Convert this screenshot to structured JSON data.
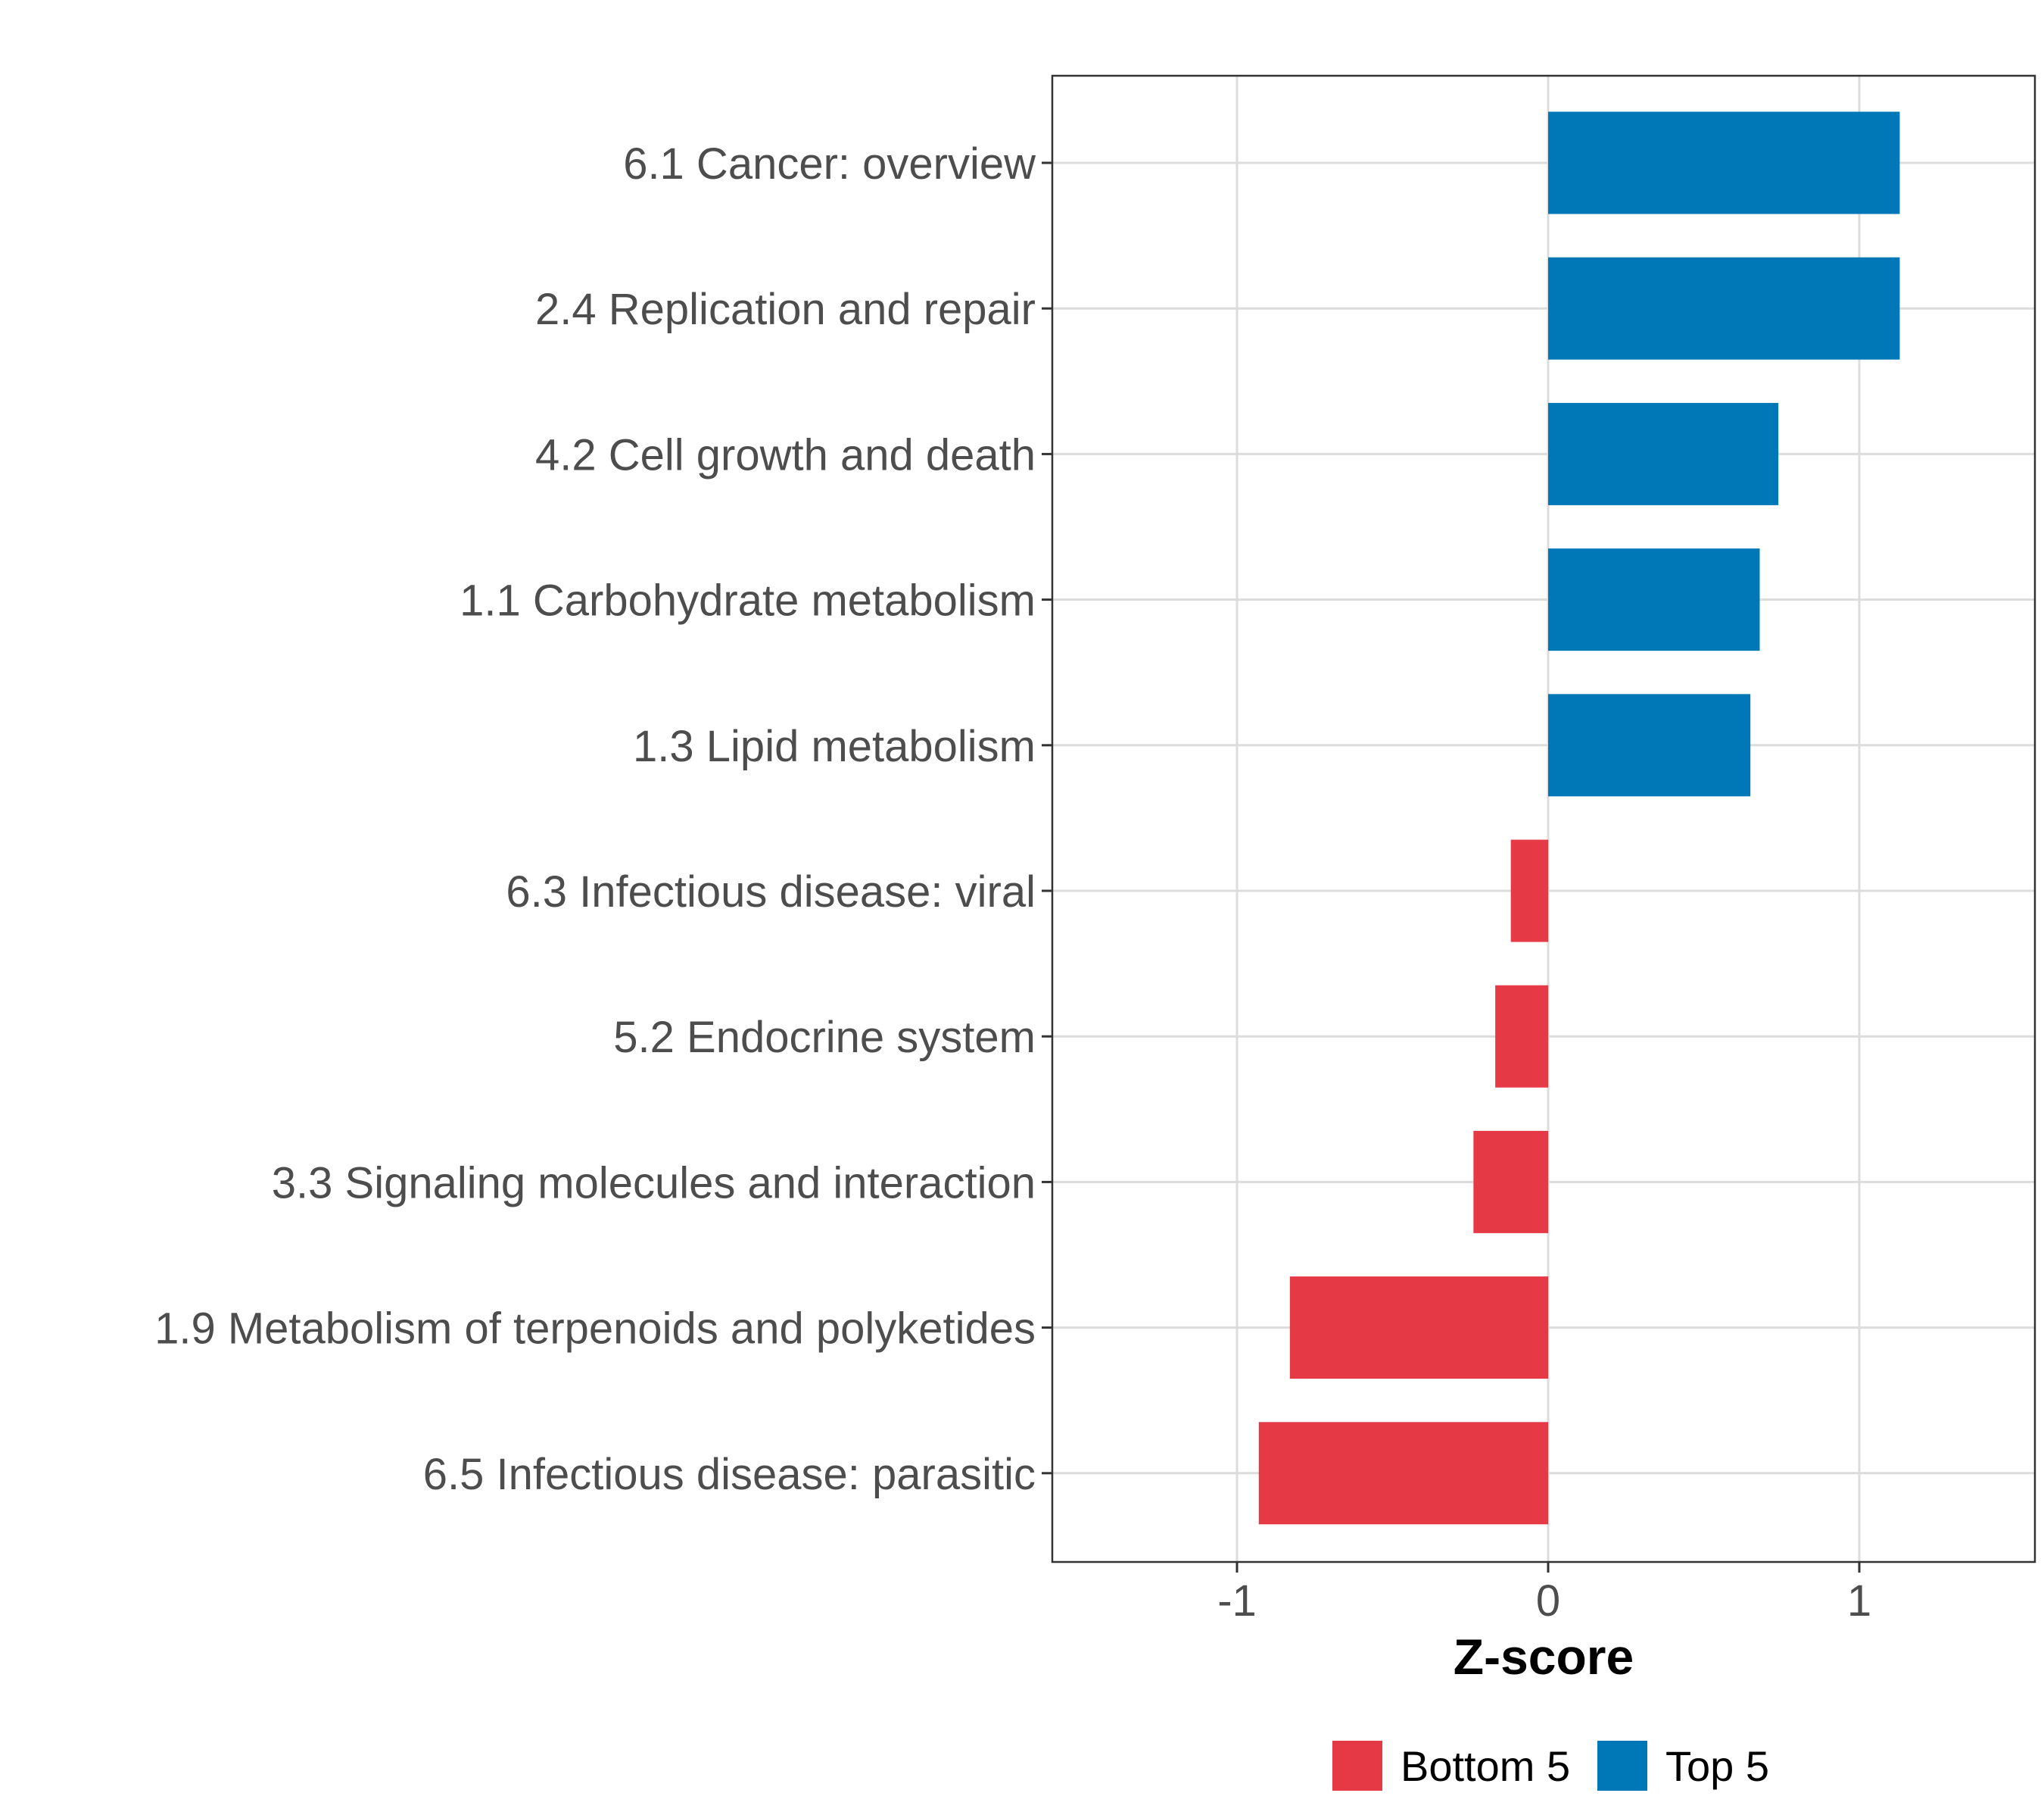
{
  "chart_data": {
    "type": "bar",
    "orientation": "horizontal",
    "title": "",
    "xlabel": "Z-score",
    "ylabel": "",
    "xlim": [
      -1.55,
      1.55
    ],
    "xticks": [
      -1,
      0,
      1
    ],
    "xtick_labels": [
      "-1",
      "0",
      "1"
    ],
    "grid": true,
    "categories": [
      "6.1 Cancer: overview",
      "2.4 Replication and repair",
      "4.2 Cell growth and death",
      "1.1 Carbohydrate metabolism",
      "1.3 Lipid metabolism",
      "6.3 Infectious disease: viral",
      "5.2 Endocrine system",
      "3.3 Signaling molecules and interaction",
      "1.9 Metabolism of terpenoids and polyketides",
      "6.5 Infectious disease: parasitic"
    ],
    "values": [
      1.13,
      1.13,
      0.74,
      0.68,
      0.65,
      -0.12,
      -0.17,
      -0.24,
      -0.83,
      -0.93
    ],
    "groups": [
      "Top 5",
      "Top 5",
      "Top 5",
      "Top 5",
      "Top 5",
      "Bottom 5",
      "Bottom 5",
      "Bottom 5",
      "Bottom 5",
      "Bottom 5"
    ],
    "legend": {
      "position": "bottom",
      "entries": [
        {
          "label": "Bottom 5",
          "color": "#E63946"
        },
        {
          "label": "Top 5",
          "color": "#0077B6"
        }
      ]
    }
  }
}
